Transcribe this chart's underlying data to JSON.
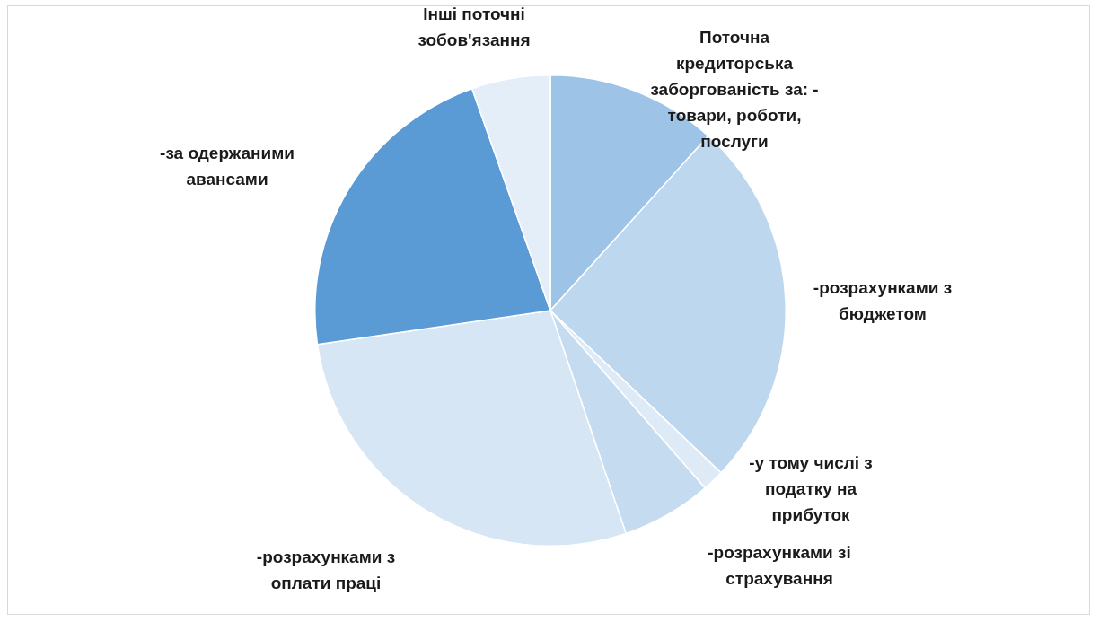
{
  "chart_data": {
    "type": "pie",
    "categories": [
      "Поточна кредиторська заборгованість за: - товари, роботи, послуги",
      "-розрахунками з бюджетом",
      "-у тому числі з податку на прибуток",
      "-розрахунками зі страхування",
      "-розрахунками з оплати праці",
      "-за одержаними авансами",
      "Інші поточні зобов'язання"
    ],
    "values": [
      11.7,
      25.4,
      1.5,
      6.2,
      27.9,
      21.9,
      5.4
    ],
    "colors": [
      "#9dc3e6",
      "#bdd7ee",
      "#deebf7",
      "#c5dcf0",
      "#d6e6f5",
      "#5b9bd5",
      "#e4eef8"
    ],
    "legend": false
  }
}
